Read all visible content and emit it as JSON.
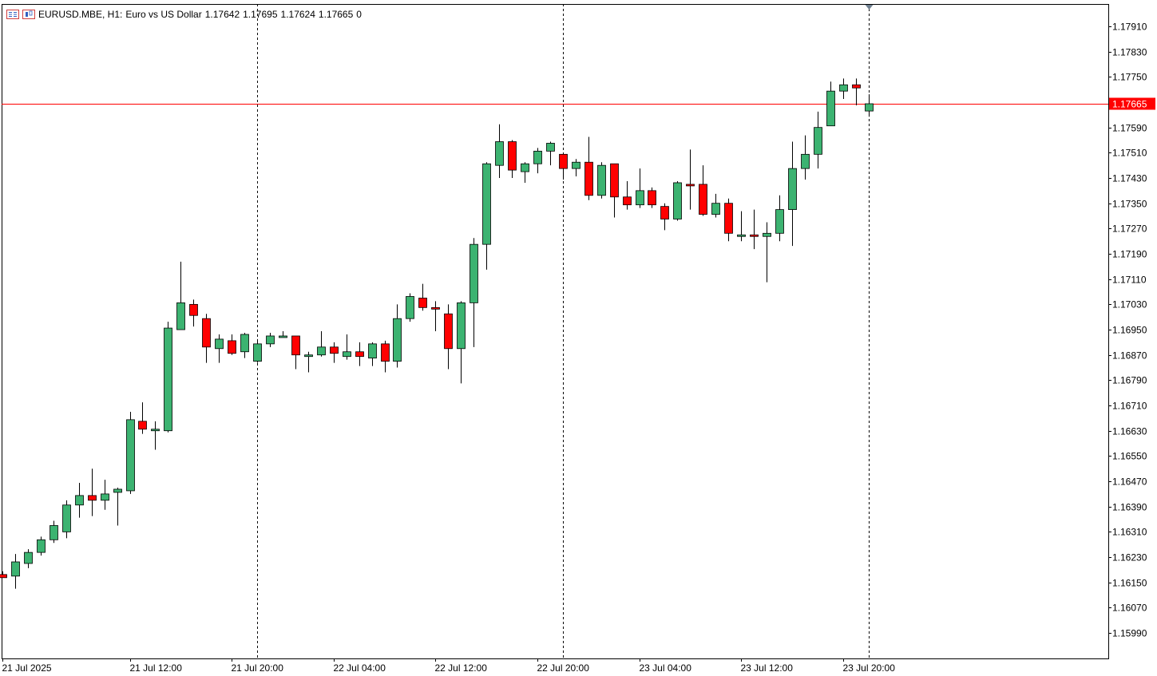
{
  "header": {
    "symbol": "EURUSD.MBE, H1:",
    "description": "Euro vs US Dollar",
    "open": "1.17642",
    "high": "1.17695",
    "low": "1.17624",
    "close": "1.17665",
    "volume": "0"
  },
  "colors": {
    "bull": "#3cb371",
    "bear": "#ff0000",
    "wick": "#000000",
    "price_line": "#ff0000",
    "grid_separator": "#000000"
  },
  "current_price_label": "1.17665",
  "chart_data": {
    "type": "candlestick",
    "title": "EURUSD.MBE, H1: Euro vs US Dollar",
    "timeframe": "H1",
    "ylim": [
      1.1591,
      1.1799
    ],
    "y_ticks": [
      "1.17910",
      "1.17830",
      "1.17750",
      "1.17590",
      "1.17510",
      "1.17430",
      "1.17350",
      "1.17270",
      "1.17190",
      "1.17110",
      "1.17030",
      "1.16950",
      "1.16870",
      "1.16790",
      "1.16710",
      "1.16630",
      "1.16550",
      "1.16470",
      "1.16390",
      "1.16310",
      "1.16230",
      "1.16150",
      "1.16070",
      "1.15990"
    ],
    "x_ticks": [
      {
        "index": 0,
        "label": "21 Jul 2025"
      },
      {
        "index": 10,
        "label": "21 Jul 12:00"
      },
      {
        "index": 18,
        "label": "21 Jul 20:00"
      },
      {
        "index": 26,
        "label": "22 Jul 04:00"
      },
      {
        "index": 34,
        "label": "22 Jul 12:00"
      },
      {
        "index": 42,
        "label": "22 Jul 20:00"
      },
      {
        "index": 50,
        "label": "23 Jul 04:00"
      },
      {
        "index": 58,
        "label": "23 Jul 12:00"
      },
      {
        "index": 66,
        "label": "23 Jul 20:00"
      }
    ],
    "day_separators": [
      20,
      44,
      68
    ],
    "current_price": 1.17665,
    "candles": [
      {
        "o": 1.16175,
        "h": 1.16185,
        "l": 1.16165,
        "c": 1.16165
      },
      {
        "o": 1.1617,
        "h": 1.1624,
        "l": 1.1613,
        "c": 1.16215
      },
      {
        "o": 1.1621,
        "h": 1.16255,
        "l": 1.16195,
        "c": 1.16245
      },
      {
        "o": 1.16245,
        "h": 1.16295,
        "l": 1.16235,
        "c": 1.16285
      },
      {
        "o": 1.16285,
        "h": 1.16345,
        "l": 1.16275,
        "c": 1.1633
      },
      {
        "o": 1.1631,
        "h": 1.1641,
        "l": 1.1629,
        "c": 1.16395
      },
      {
        "o": 1.16395,
        "h": 1.16465,
        "l": 1.16355,
        "c": 1.16425
      },
      {
        "o": 1.16425,
        "h": 1.1651,
        "l": 1.1636,
        "c": 1.1641
      },
      {
        "o": 1.1641,
        "h": 1.16475,
        "l": 1.1638,
        "c": 1.1643
      },
      {
        "o": 1.16435,
        "h": 1.1645,
        "l": 1.1633,
        "c": 1.16445
      },
      {
        "o": 1.1644,
        "h": 1.1669,
        "l": 1.1643,
        "c": 1.16665
      },
      {
        "o": 1.1666,
        "h": 1.1672,
        "l": 1.1662,
        "c": 1.16635
      },
      {
        "o": 1.16635,
        "h": 1.1666,
        "l": 1.1657,
        "c": 1.16635
      },
      {
        "o": 1.1663,
        "h": 1.16975,
        "l": 1.16625,
        "c": 1.16955
      },
      {
        "o": 1.1695,
        "h": 1.17165,
        "l": 1.1695,
        "c": 1.17035
      },
      {
        "o": 1.1703,
        "h": 1.17045,
        "l": 1.1696,
        "c": 1.16995
      },
      {
        "o": 1.16985,
        "h": 1.17,
        "l": 1.16845,
        "c": 1.16895
      },
      {
        "o": 1.1689,
        "h": 1.16935,
        "l": 1.16845,
        "c": 1.1692
      },
      {
        "o": 1.16915,
        "h": 1.16935,
        "l": 1.1687,
        "c": 1.16875
      },
      {
        "o": 1.1688,
        "h": 1.1694,
        "l": 1.1686,
        "c": 1.16935
      },
      {
        "o": 1.1685,
        "h": 1.1692,
        "l": 1.16845,
        "c": 1.16905
      },
      {
        "o": 1.16905,
        "h": 1.1694,
        "l": 1.16895,
        "c": 1.1693
      },
      {
        "o": 1.1693,
        "h": 1.16945,
        "l": 1.16925,
        "c": 1.1693
      },
      {
        "o": 1.1693,
        "h": 1.1693,
        "l": 1.16825,
        "c": 1.1687
      },
      {
        "o": 1.1687,
        "h": 1.1688,
        "l": 1.16815,
        "c": 1.1687
      },
      {
        "o": 1.1687,
        "h": 1.16945,
        "l": 1.16865,
        "c": 1.16895
      },
      {
        "o": 1.16895,
        "h": 1.1691,
        "l": 1.16845,
        "c": 1.16875
      },
      {
        "o": 1.16865,
        "h": 1.16935,
        "l": 1.16855,
        "c": 1.1688
      },
      {
        "o": 1.1688,
        "h": 1.1691,
        "l": 1.16835,
        "c": 1.16865
      },
      {
        "o": 1.1686,
        "h": 1.1691,
        "l": 1.16835,
        "c": 1.16905
      },
      {
        "o": 1.16905,
        "h": 1.16915,
        "l": 1.16815,
        "c": 1.1685
      },
      {
        "o": 1.1685,
        "h": 1.1703,
        "l": 1.1683,
        "c": 1.16985
      },
      {
        "o": 1.16985,
        "h": 1.17065,
        "l": 1.16975,
        "c": 1.17055
      },
      {
        "o": 1.1705,
        "h": 1.17095,
        "l": 1.1701,
        "c": 1.1702
      },
      {
        "o": 1.1702,
        "h": 1.1704,
        "l": 1.16945,
        "c": 1.17015
      },
      {
        "o": 1.17,
        "h": 1.1703,
        "l": 1.16825,
        "c": 1.1689
      },
      {
        "o": 1.1689,
        "h": 1.1704,
        "l": 1.1678,
        "c": 1.17035
      },
      {
        "o": 1.17035,
        "h": 1.1724,
        "l": 1.16895,
        "c": 1.1722
      },
      {
        "o": 1.1722,
        "h": 1.1748,
        "l": 1.1714,
        "c": 1.17475
      },
      {
        "o": 1.1747,
        "h": 1.176,
        "l": 1.1743,
        "c": 1.17545
      },
      {
        "o": 1.17545,
        "h": 1.1755,
        "l": 1.1743,
        "c": 1.17455
      },
      {
        "o": 1.1745,
        "h": 1.1748,
        "l": 1.17415,
        "c": 1.17475
      },
      {
        "o": 1.17475,
        "h": 1.17525,
        "l": 1.17445,
        "c": 1.17515
      },
      {
        "o": 1.17515,
        "h": 1.17545,
        "l": 1.1747,
        "c": 1.1754
      },
      {
        "o": 1.17505,
        "h": 1.1751,
        "l": 1.17425,
        "c": 1.1746
      },
      {
        "o": 1.1746,
        "h": 1.1749,
        "l": 1.17435,
        "c": 1.1748
      },
      {
        "o": 1.1748,
        "h": 1.1756,
        "l": 1.1736,
        "c": 1.17375
      },
      {
        "o": 1.17375,
        "h": 1.1748,
        "l": 1.17365,
        "c": 1.1747
      },
      {
        "o": 1.17475,
        "h": 1.17475,
        "l": 1.17305,
        "c": 1.1737
      },
      {
        "o": 1.1737,
        "h": 1.1742,
        "l": 1.1733,
        "c": 1.17345
      },
      {
        "o": 1.17345,
        "h": 1.1746,
        "l": 1.17335,
        "c": 1.1739
      },
      {
        "o": 1.1739,
        "h": 1.174,
        "l": 1.17335,
        "c": 1.17345
      },
      {
        "o": 1.1734,
        "h": 1.1735,
        "l": 1.17265,
        "c": 1.173
      },
      {
        "o": 1.173,
        "h": 1.1742,
        "l": 1.17295,
        "c": 1.17415
      },
      {
        "o": 1.1741,
        "h": 1.1752,
        "l": 1.1733,
        "c": 1.17405
      },
      {
        "o": 1.1741,
        "h": 1.1747,
        "l": 1.1731,
        "c": 1.17315
      },
      {
        "o": 1.17315,
        "h": 1.1738,
        "l": 1.17305,
        "c": 1.1735
      },
      {
        "o": 1.1735,
        "h": 1.17365,
        "l": 1.1723,
        "c": 1.17255
      },
      {
        "o": 1.1725,
        "h": 1.17325,
        "l": 1.1723,
        "c": 1.1725
      },
      {
        "o": 1.1725,
        "h": 1.1733,
        "l": 1.17205,
        "c": 1.17245
      },
      {
        "o": 1.17245,
        "h": 1.1729,
        "l": 1.171,
        "c": 1.17255
      },
      {
        "o": 1.17255,
        "h": 1.17375,
        "l": 1.1723,
        "c": 1.1733
      },
      {
        "o": 1.1733,
        "h": 1.17545,
        "l": 1.17215,
        "c": 1.1746
      },
      {
        "o": 1.1746,
        "h": 1.17565,
        "l": 1.17425,
        "c": 1.17505
      },
      {
        "o": 1.17505,
        "h": 1.1764,
        "l": 1.1746,
        "c": 1.1759
      },
      {
        "o": 1.17595,
        "h": 1.17735,
        "l": 1.17595,
        "c": 1.17705
      },
      {
        "o": 1.17705,
        "h": 1.17745,
        "l": 1.1768,
        "c": 1.17725
      },
      {
        "o": 1.17725,
        "h": 1.17745,
        "l": 1.1766,
        "c": 1.17715
      },
      {
        "o": 1.17642,
        "h": 1.17695,
        "l": 1.17624,
        "c": 1.17665
      }
    ]
  }
}
